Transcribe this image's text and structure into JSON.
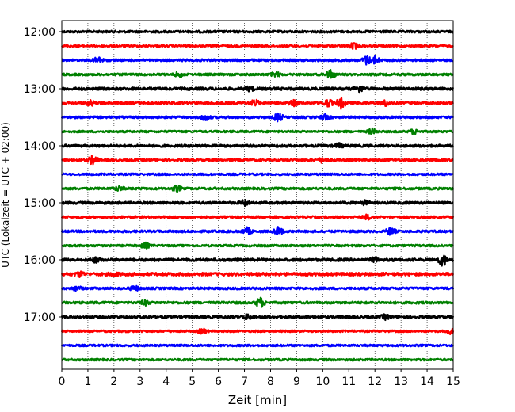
{
  "chart_data": {
    "type": "line",
    "title": "",
    "xlabel": "Zeit  [min]",
    "ylabel": "UTC (Lokalzeit = UTC + 02:00)",
    "xlim": [
      0,
      15
    ],
    "x_ticks": [
      "0",
      "1",
      "2",
      "3",
      "4",
      "5",
      "6",
      "7",
      "8",
      "9",
      "10",
      "11",
      "12",
      "13",
      "14",
      "15"
    ],
    "y_tick_labels": [
      "12:00",
      "13:00",
      "14:00",
      "15:00",
      "16:00",
      "17:00"
    ],
    "y_ticks_row": [
      0,
      4,
      8,
      12,
      16,
      20
    ],
    "grid_x": true,
    "colors": [
      "#000000",
      "#ff0000",
      "#0000ff",
      "#008000"
    ],
    "rows": [
      {
        "time": "12:00",
        "color": "#000000",
        "amplitude": 0.45,
        "events": []
      },
      {
        "time": "12:15",
        "color": "#ff0000",
        "amplitude": 0.4,
        "events": [
          {
            "x": 11.2,
            "amp": 1.6
          }
        ]
      },
      {
        "time": "12:30",
        "color": "#0000ff",
        "amplitude": 0.45,
        "events": [
          {
            "x": 1.4,
            "amp": 1.6
          },
          {
            "x": 11.7,
            "amp": 2.2
          },
          {
            "x": 12.0,
            "amp": 1.8
          }
        ]
      },
      {
        "time": "12:45",
        "color": "#008000",
        "amplitude": 0.45,
        "events": [
          {
            "x": 4.5,
            "amp": 1.4
          },
          {
            "x": 8.2,
            "amp": 1.3
          },
          {
            "x": 10.3,
            "amp": 2.2
          }
        ]
      },
      {
        "time": "13:00",
        "color": "#000000",
        "amplitude": 0.55,
        "events": [
          {
            "x": 7.2,
            "amp": 1.3
          },
          {
            "x": 11.4,
            "amp": 1.8
          }
        ]
      },
      {
        "time": "13:15",
        "color": "#ff0000",
        "amplitude": 0.5,
        "events": [
          {
            "x": 1.1,
            "amp": 1.4
          },
          {
            "x": 7.4,
            "amp": 1.6
          },
          {
            "x": 8.9,
            "amp": 1.4
          },
          {
            "x": 10.2,
            "amp": 1.9
          },
          {
            "x": 10.7,
            "amp": 2.4
          },
          {
            "x": 12.4,
            "amp": 1.5
          }
        ]
      },
      {
        "time": "13:30",
        "color": "#0000ff",
        "amplitude": 0.45,
        "events": [
          {
            "x": 5.5,
            "amp": 1.6
          },
          {
            "x": 8.3,
            "amp": 2.0
          },
          {
            "x": 10.1,
            "amp": 1.3
          }
        ]
      },
      {
        "time": "13:45",
        "color": "#008000",
        "amplitude": 0.4,
        "events": [
          {
            "x": 11.9,
            "amp": 1.4
          },
          {
            "x": 13.5,
            "amp": 1.3
          }
        ]
      },
      {
        "time": "14:00",
        "color": "#000000",
        "amplitude": 0.5,
        "events": [
          {
            "x": 10.6,
            "amp": 1.3
          }
        ]
      },
      {
        "time": "14:15",
        "color": "#ff0000",
        "amplitude": 0.45,
        "events": [
          {
            "x": 1.2,
            "amp": 2.2
          },
          {
            "x": 10.0,
            "amp": 1.4
          }
        ]
      },
      {
        "time": "14:30",
        "color": "#0000ff",
        "amplitude": 0.4,
        "events": []
      },
      {
        "time": "14:45",
        "color": "#008000",
        "amplitude": 0.45,
        "events": [
          {
            "x": 2.2,
            "amp": 1.3
          },
          {
            "x": 4.4,
            "amp": 1.5
          }
        ]
      },
      {
        "time": "15:00",
        "color": "#000000",
        "amplitude": 0.5,
        "events": [
          {
            "x": 7.0,
            "amp": 1.4
          },
          {
            "x": 11.6,
            "amp": 1.3
          }
        ]
      },
      {
        "time": "15:15",
        "color": "#ff0000",
        "amplitude": 0.45,
        "events": [
          {
            "x": 11.7,
            "amp": 1.3
          }
        ]
      },
      {
        "time": "15:30",
        "color": "#0000ff",
        "amplitude": 0.45,
        "events": [
          {
            "x": 7.1,
            "amp": 1.8
          },
          {
            "x": 8.3,
            "amp": 1.9
          },
          {
            "x": 12.6,
            "amp": 1.8
          }
        ]
      },
      {
        "time": "15:45",
        "color": "#008000",
        "amplitude": 0.4,
        "events": [
          {
            "x": 3.2,
            "amp": 1.4
          }
        ]
      },
      {
        "time": "16:00",
        "color": "#000000",
        "amplitude": 0.55,
        "events": [
          {
            "x": 1.3,
            "amp": 1.4
          },
          {
            "x": 12.0,
            "amp": 1.3
          },
          {
            "x": 14.6,
            "amp": 2.8
          }
        ]
      },
      {
        "time": "16:15",
        "color": "#ff0000",
        "amplitude": 0.6,
        "events": [
          {
            "x": 0.7,
            "amp": 1.4
          },
          {
            "x": 2.0,
            "amp": 1.2
          }
        ]
      },
      {
        "time": "16:30",
        "color": "#0000ff",
        "amplitude": 0.45,
        "events": [
          {
            "x": 0.6,
            "amp": 1.3
          },
          {
            "x": 2.8,
            "amp": 1.3
          }
        ]
      },
      {
        "time": "16:45",
        "color": "#008000",
        "amplitude": 0.45,
        "events": [
          {
            "x": 3.2,
            "amp": 1.3
          },
          {
            "x": 7.6,
            "amp": 2.4
          }
        ]
      },
      {
        "time": "17:00",
        "color": "#000000",
        "amplitude": 0.5,
        "events": [
          {
            "x": 7.1,
            "amp": 1.4
          },
          {
            "x": 12.4,
            "amp": 1.3
          }
        ]
      },
      {
        "time": "17:15",
        "color": "#ff0000",
        "amplitude": 0.4,
        "events": [
          {
            "x": 5.4,
            "amp": 1.3
          },
          {
            "x": 14.9,
            "amp": 1.4
          }
        ]
      },
      {
        "time": "17:30",
        "color": "#0000ff",
        "amplitude": 0.4,
        "events": []
      },
      {
        "time": "17:45",
        "color": "#008000",
        "amplitude": 0.4,
        "events": []
      }
    ]
  }
}
